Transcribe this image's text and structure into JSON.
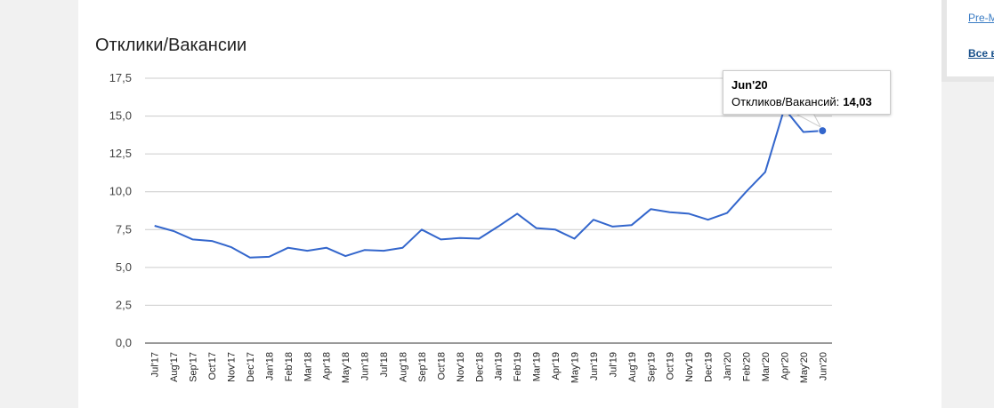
{
  "right_panel": {
    "link1": "Pre-M",
    "link2": "Все ва"
  },
  "chart_data": {
    "type": "line",
    "title": "Отклики/Вакансии",
    "xlabel": "",
    "ylabel": "",
    "ylim": [
      0,
      17.5
    ],
    "y_ticks": [
      "0,0",
      "2,5",
      "5,0",
      "7,5",
      "10,0",
      "12,5",
      "15,0",
      "17,5"
    ],
    "grid": true,
    "line_color": "#3366cc",
    "categories": [
      "Jul'17",
      "Aug'17",
      "Sep'17",
      "Oct'17",
      "Nov'17",
      "Dec'17",
      "Jan'18",
      "Feb'18",
      "Mar'18",
      "Apr'18",
      "May'18",
      "Jun'18",
      "Jul'18",
      "Aug'18",
      "Sep'18",
      "Oct'18",
      "Nov'18",
      "Dec'18",
      "Jan'19",
      "Feb'19",
      "Mar'19",
      "Apr'19",
      "May'19",
      "Jun'19",
      "Jul'19",
      "Aug'19",
      "Sep'19",
      "Oct'19",
      "Nov'19",
      "Dec'19",
      "Jan'20",
      "Feb'20",
      "Mar'20",
      "Apr'20",
      "May'20",
      "Jun'20"
    ],
    "values": [
      7.75,
      7.4,
      6.85,
      6.75,
      6.35,
      5.65,
      5.7,
      6.3,
      6.1,
      6.3,
      5.75,
      6.15,
      6.1,
      6.3,
      7.5,
      6.85,
      6.95,
      6.9,
      7.7,
      8.55,
      7.6,
      7.5,
      6.9,
      8.15,
      7.7,
      7.8,
      8.85,
      8.65,
      8.55,
      8.15,
      8.6,
      10.0,
      11.3,
      15.5,
      13.95,
      14.03
    ],
    "tooltip": {
      "title": "Jun'20",
      "label": "Откликов/Вакансий:",
      "value": "14,03"
    }
  }
}
